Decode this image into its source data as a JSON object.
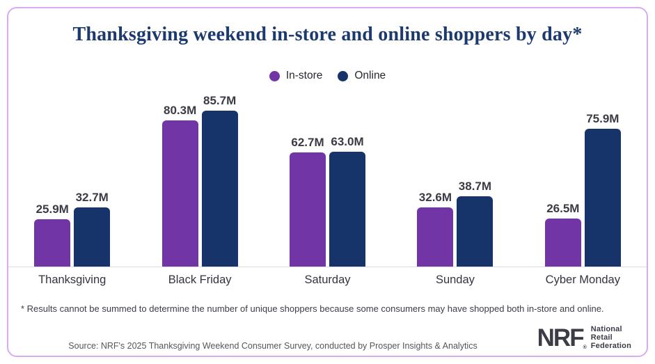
{
  "title": "Thanksgiving weekend in-store and online shoppers by day*",
  "chart_data": {
    "type": "bar",
    "categories": [
      "Thanksgiving",
      "Black Friday",
      "Saturday",
      "Sunday",
      "Cyber Monday"
    ],
    "series": [
      {
        "name": "In-store",
        "color": "#7235a6",
        "values": [
          25.9,
          80.3,
          62.7,
          32.6,
          26.5
        ]
      },
      {
        "name": "Online",
        "color": "#17346a",
        "values": [
          32.7,
          85.7,
          63.0,
          38.7,
          75.9
        ]
      }
    ],
    "value_suffix": "M",
    "data_labels": [
      [
        "25.9M",
        "80.3M",
        "62.7M",
        "32.6M",
        "26.5M"
      ],
      [
        "32.7M",
        "85.7M",
        "63.0M",
        "38.7M",
        "75.9M"
      ]
    ],
    "title": "Thanksgiving weekend in-store and online shoppers by day*",
    "xlabel": "",
    "ylabel": "",
    "ylim": [
      0,
      90
    ],
    "grid": false,
    "legend_position": "top-center"
  },
  "legend": {
    "items": [
      {
        "label": "In-store",
        "color": "#7235a6"
      },
      {
        "label": "Online",
        "color": "#17346a"
      }
    ]
  },
  "footnote": "* Results cannot be summed to determine the number of unique shoppers because some consumers may have shopped both in-store and online.",
  "source": "Source: NRF's 2025 Thanksgiving Weekend Consumer Survey, conducted by Prosper Insights & Analytics",
  "logo": {
    "abbr": "NRF",
    "registered": "®",
    "lines": [
      "National",
      "Retail",
      "Federation"
    ]
  },
  "colors": {
    "card_border": "#d9abf2",
    "title": "#1d3a6e",
    "in_store": "#7235a6",
    "online": "#17346a",
    "value_label": "#3b3b45",
    "axis_line": "#dcdcde",
    "logo": "#3c3c46"
  }
}
